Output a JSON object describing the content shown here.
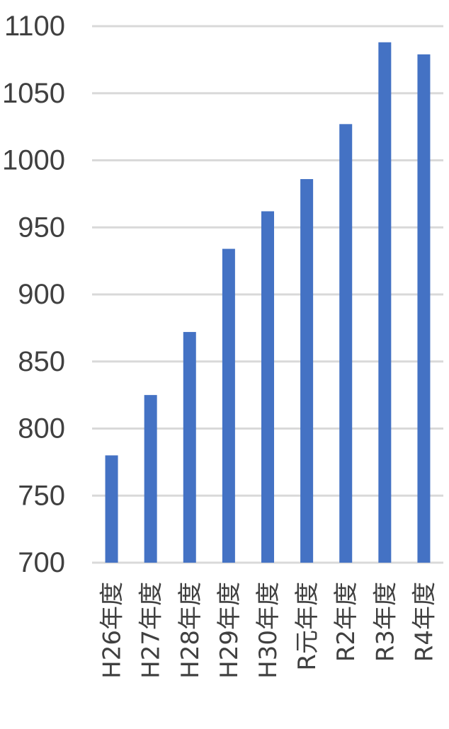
{
  "chart_data": {
    "type": "bar",
    "title": "",
    "xlabel": "",
    "ylabel": "",
    "ylim": [
      700,
      1100
    ],
    "y_ticks": [
      700,
      750,
      800,
      850,
      900,
      950,
      1000,
      1050,
      1100
    ],
    "grid": true,
    "legend": "none",
    "categories": [
      "H26年度",
      "H27年度",
      "H28年度",
      "H29年度",
      "H30年度",
      "R元年度",
      "R2年度",
      "R3年度",
      "R4年度"
    ],
    "series": [
      {
        "values": [
          780,
          825,
          872,
          934,
          962,
          986,
          1027,
          1088,
          1079
        ],
        "color": "#4472C4"
      }
    ],
    "colors": {
      "bar": "#4472C4",
      "grid": "#d9d9d9",
      "text": "#404040"
    }
  }
}
